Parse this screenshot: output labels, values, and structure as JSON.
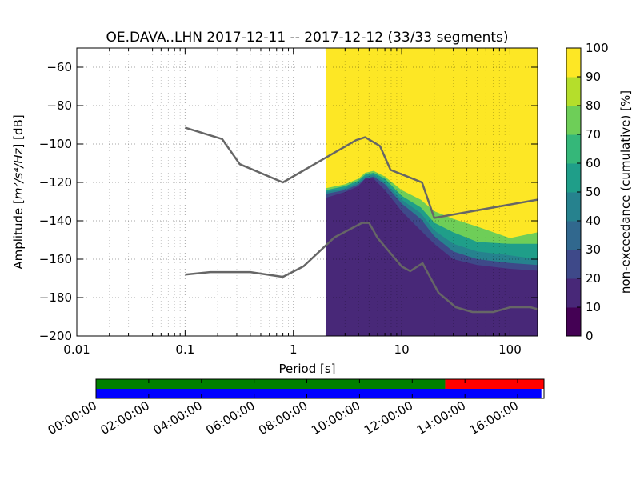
{
  "chart_data": [
    {
      "type": "heatmap",
      "title": "OE.DAVA..LHN   2017-12-11 -- 2017-12-12  (33/33 segments)",
      "xlabel": "Period [s]",
      "ylabel_prefix": "Amplitude [",
      "ylabel_math": "m²/s⁴/Hz",
      "ylabel_suffix": "] [dB]",
      "x_scale": "log",
      "xlim": [
        0.01,
        180
      ],
      "ylim": [
        -200,
        -50
      ],
      "x_ticks": [
        {
          "value": 0.01,
          "label": "0.01"
        },
        {
          "value": 0.1,
          "label": "0.1"
        },
        {
          "value": 1,
          "label": "1"
        },
        {
          "value": 10,
          "label": "10"
        },
        {
          "value": 100,
          "label": "100"
        }
      ],
      "y_ticks": [
        {
          "value": -60,
          "label": "−60"
        },
        {
          "value": -80,
          "label": "−80"
        },
        {
          "value": -100,
          "label": "−100"
        },
        {
          "value": -120,
          "label": "−120"
        },
        {
          "value": -140,
          "label": "−140"
        },
        {
          "value": -160,
          "label": "−160"
        },
        {
          "value": -180,
          "label": "−180"
        },
        {
          "value": -200,
          "label": "−200"
        }
      ],
      "grid": "dotted",
      "data_period_start": 2,
      "colorbar": {
        "label": "non-exceedance (cumulative) [%]",
        "range": [
          0,
          100
        ],
        "ticks": [
          {
            "value": 0,
            "label": "0"
          },
          {
            "value": 10,
            "label": "10"
          },
          {
            "value": 20,
            "label": "20"
          },
          {
            "value": 30,
            "label": "30"
          },
          {
            "value": 40,
            "label": "40"
          },
          {
            "value": 50,
            "label": "50"
          },
          {
            "value": 60,
            "label": "60"
          },
          {
            "value": 70,
            "label": "70"
          },
          {
            "value": 80,
            "label": "80"
          },
          {
            "value": 90,
            "label": "90"
          },
          {
            "value": 100,
            "label": "100"
          }
        ],
        "colors": [
          "#440154",
          "#482878",
          "#3e4989",
          "#31688e",
          "#26828e",
          "#1f9e89",
          "#35b779",
          "#6ece58",
          "#b5de2b",
          "#fde725"
        ]
      },
      "band_profiles": [
        {
          "name": "p10",
          "points": [
            [
              2,
              -128
            ],
            [
              3,
              -125
            ],
            [
              4,
              -122
            ],
            [
              4.6,
              -118
            ],
            [
              5.5,
              -118
            ],
            [
              7,
              -124
            ],
            [
              10,
              -135
            ],
            [
              15,
              -145
            ],
            [
              20,
              -152
            ],
            [
              30,
              -160
            ],
            [
              50,
              -163
            ],
            [
              100,
              -165
            ],
            [
              180,
              -166
            ]
          ]
        },
        {
          "name": "p20",
          "points": [
            [
              2,
              -126
            ],
            [
              3,
              -124
            ],
            [
              4,
              -121
            ],
            [
              4.6,
              -118
            ],
            [
              5.5,
              -117
            ],
            [
              7,
              -121
            ],
            [
              10,
              -131
            ],
            [
              15,
              -139
            ],
            [
              20,
              -148
            ],
            [
              30,
              -156
            ],
            [
              50,
              -160
            ],
            [
              100,
              -162
            ],
            [
              180,
              -163
            ]
          ]
        },
        {
          "name": "p40",
          "points": [
            [
              2,
              -125
            ],
            [
              3,
              -123
            ],
            [
              4,
              -120
            ],
            [
              4.6,
              -117
            ],
            [
              5.5,
              -116
            ],
            [
              7,
              -120
            ],
            [
              10,
              -129
            ],
            [
              15,
              -136
            ],
            [
              20,
              -145
            ],
            [
              30,
              -152
            ],
            [
              50,
              -156
            ],
            [
              100,
              -158
            ],
            [
              180,
              -160
            ]
          ]
        },
        {
          "name": "p70",
          "points": [
            [
              2,
              -124
            ],
            [
              3,
              -122
            ],
            [
              4,
              -119
            ],
            [
              4.6,
              -116
            ],
            [
              5.5,
              -115
            ],
            [
              7,
              -118
            ],
            [
              10,
              -127
            ],
            [
              15,
              -133
            ],
            [
              20,
              -141
            ],
            [
              30,
              -146
            ],
            [
              50,
              -151
            ],
            [
              100,
              -152
            ],
            [
              180,
              -152
            ]
          ]
        },
        {
          "name": "p90",
          "points": [
            [
              2,
              -123
            ],
            [
              3,
              -121
            ],
            [
              4,
              -118
            ],
            [
              4.6,
              -115
            ],
            [
              5.5,
              -114
            ],
            [
              7,
              -117
            ],
            [
              10,
              -124
            ],
            [
              15,
              -129
            ],
            [
              20,
              -135
            ],
            [
              30,
              -139
            ],
            [
              50,
              -143
            ],
            [
              100,
              -149
            ],
            [
              180,
              -146
            ]
          ]
        }
      ],
      "noise_models": [
        {
          "name": "NHNM",
          "points": [
            [
              0.1,
              -91.5
            ],
            [
              0.22,
              -97.4
            ],
            [
              0.32,
              -110.5
            ],
            [
              0.8,
              -120
            ],
            [
              3.8,
              -98
            ],
            [
              4.6,
              -96.5
            ],
            [
              6.3,
              -101
            ],
            [
              7.9,
              -113.5
            ],
            [
              15.4,
              -120
            ],
            [
              20,
              -138.5
            ],
            [
              180,
              -129
            ]
          ]
        },
        {
          "name": "NLNM",
          "points": [
            [
              0.1,
              -168
            ],
            [
              0.17,
              -166.7
            ],
            [
              0.4,
              -166.7
            ],
            [
              0.8,
              -169.2
            ],
            [
              1.24,
              -163.7
            ],
            [
              2.4,
              -148.6
            ],
            [
              4.3,
              -141.1
            ],
            [
              5,
              -141.1
            ],
            [
              6,
              -149
            ],
            [
              10,
              -163.8
            ],
            [
              12,
              -166.2
            ],
            [
              15.6,
              -162.1
            ],
            [
              21.9,
              -177.5
            ],
            [
              31.6,
              -185
            ],
            [
              45,
              -187.5
            ],
            [
              70,
              -187.5
            ],
            [
              101,
              -185
            ],
            [
              154,
              -185
            ],
            [
              180,
              -186
            ]
          ]
        }
      ]
    },
    {
      "type": "timeline",
      "tick_labels": [
        "00:00:00",
        "02:00:00",
        "04:00:00",
        "06:00:00",
        "08:00:00",
        "10:00:00",
        "12:00:00",
        "14:00:00",
        "16:00:00"
      ],
      "tick_hours": [
        0,
        2,
        4,
        6,
        8,
        10,
        12,
        14,
        16
      ],
      "range_hours": [
        0,
        17
      ],
      "top_bar": [
        {
          "from": 0,
          "to": 13.25,
          "color": "#008000"
        },
        {
          "from": 13.25,
          "to": 17,
          "color": "#ff0000"
        }
      ],
      "bottom_bar": [
        {
          "from": 0,
          "to": 16.9,
          "color": "#0000ff"
        }
      ]
    }
  ]
}
